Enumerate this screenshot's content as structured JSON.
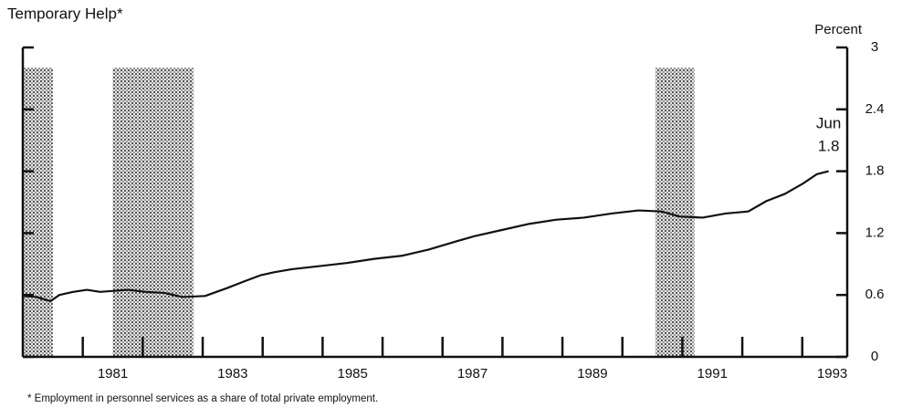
{
  "chart_data": {
    "type": "line",
    "title": "Temporary Help*",
    "y_label": "Percent",
    "footnote": "* Employment in personnel services as a share of total private employment.",
    "annotation": {
      "label": "Jun",
      "value_label": "1.8",
      "x": 1993.44,
      "y": 1.8
    },
    "x": [
      1980.0,
      1980.23,
      1980.46,
      1980.61,
      1980.84,
      1981.07,
      1981.29,
      1981.75,
      1982.05,
      1982.36,
      1982.66,
      1983.04,
      1983.42,
      1983.73,
      1983.96,
      1984.19,
      1984.49,
      1984.95,
      1985.4,
      1985.86,
      1986.32,
      1986.77,
      1987.23,
      1987.53,
      1987.99,
      1988.45,
      1988.9,
      1989.36,
      1989.82,
      1990.27,
      1990.65,
      1990.96,
      1991.34,
      1991.72,
      1992.1,
      1992.4,
      1992.71,
      1993.01,
      1993.24,
      1993.44
    ],
    "series": [
      {
        "name": "Temporary Help",
        "color": "#111111",
        "values": [
          0.59,
          0.58,
          0.54,
          0.6,
          0.63,
          0.65,
          0.63,
          0.65,
          0.63,
          0.62,
          0.58,
          0.59,
          0.67,
          0.74,
          0.79,
          0.82,
          0.85,
          0.88,
          0.91,
          0.95,
          0.98,
          1.04,
          1.12,
          1.17,
          1.23,
          1.29,
          1.33,
          1.35,
          1.39,
          1.42,
          1.41,
          1.36,
          1.35,
          1.39,
          1.41,
          1.51,
          1.58,
          1.68,
          1.77,
          1.8
        ]
      }
    ],
    "recessions": [
      [
        1980.0,
        1980.5
      ],
      [
        1981.5,
        1982.85
      ],
      [
        1990.55,
        1991.2
      ]
    ],
    "xlim": [
      1980,
      1993.75
    ],
    "xticks": [
      {
        "value": 1981.5,
        "label": "1981"
      },
      {
        "value": 1983.5,
        "label": "1983"
      },
      {
        "value": 1985.5,
        "label": "1985"
      },
      {
        "value": 1987.5,
        "label": "1987"
      },
      {
        "value": 1989.5,
        "label": "1989"
      },
      {
        "value": 1991.5,
        "label": "1991"
      },
      {
        "value": 1993.5,
        "label": "1993"
      }
    ],
    "minor_xticks": [
      1981,
      1982,
      1983,
      1984,
      1985,
      1986,
      1987,
      1988,
      1989,
      1990,
      1991,
      1992,
      1993
    ],
    "ylim": [
      0,
      3
    ],
    "yticks": [
      0,
      0.6,
      1.2,
      1.8,
      2.4,
      3
    ]
  }
}
